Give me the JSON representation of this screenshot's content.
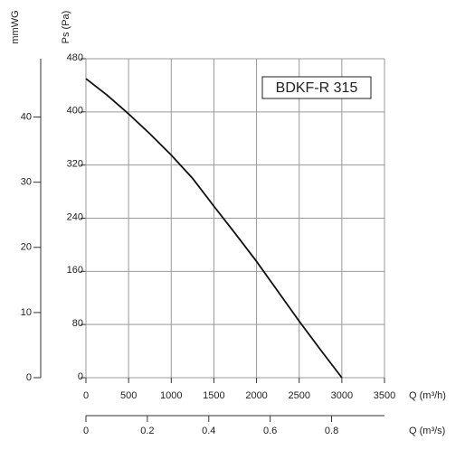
{
  "chart_data": {
    "type": "line",
    "annotation": "BDKF-R 315",
    "y_label": "Ps (Pa)",
    "y2_label": "mmWG",
    "x_label": "Q (m³/h)",
    "x2_label": "Q (m³/s)",
    "x": [
      0,
      250,
      500,
      750,
      1000,
      1250,
      1500,
      1750,
      2000,
      2250,
      2500,
      2750,
      3000
    ],
    "series": [
      {
        "color": "#111111",
        "values": [
          450,
          425,
          397,
          367,
          335,
          300,
          258,
          217,
          175,
          130,
          85,
          42,
          0
        ]
      }
    ],
    "xlim": [
      0,
      3500
    ],
    "xticks": [
      0,
      500,
      1000,
      1500,
      2000,
      2500,
      3000,
      3500
    ],
    "ylim": [
      0,
      480
    ],
    "yticks": [
      0,
      80,
      160,
      240,
      320,
      400,
      480
    ],
    "x2lim": [
      0,
      0.9722
    ],
    "x2ticks": [
      0,
      0.2,
      0.4,
      0.6,
      0.8
    ],
    "y2lim": [
      0,
      48.95
    ],
    "y2ticks": [
      0,
      10,
      20,
      30,
      40
    ],
    "grid": true
  }
}
